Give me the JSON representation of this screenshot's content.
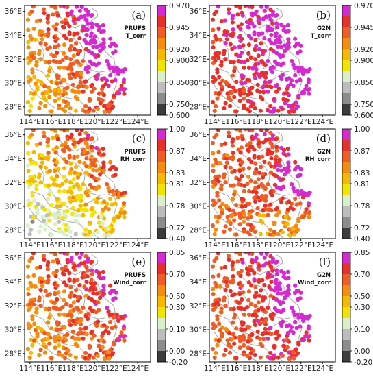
{
  "axes": {
    "x_ticks": [
      "114°E",
      "116°E",
      "118°E",
      "120°E",
      "122°E",
      "124°E"
    ],
    "y_ticks": [
      "28°E",
      "30°E",
      "32°E",
      "34°E",
      "36°E"
    ]
  },
  "colors": {
    "land_outline": "#a8a8a8",
    "scale": [
      "#3c3c3c",
      "#8c8c8c",
      "#bdbdbd",
      "#d9efc9",
      "#f2e400",
      "#f7b800",
      "#f58c10",
      "#ef5d24",
      "#e8302a",
      "#d42bd0"
    ]
  },
  "panels": [
    {
      "id": "a",
      "label": "(a)",
      "model": "PRUFS",
      "variable": "T_corr",
      "colorbar_ticks": [
        "0.970",
        "0.945",
        "0.920",
        "0.900",
        "0.850",
        "0.750",
        "0.600"
      ],
      "scheme": "T1"
    },
    {
      "id": "b",
      "label": "(b)",
      "model": "G2N",
      "variable": "T_corr",
      "colorbar_ticks": [
        "0.970",
        "0.945",
        "0.920",
        "0.900",
        "0.850",
        "0.750",
        "0.600"
      ],
      "scheme": "T2"
    },
    {
      "id": "c",
      "label": "(c)",
      "model": "PRUFS",
      "variable": "RH_corr",
      "colorbar_ticks": [
        "1.00",
        "0.87",
        "0.83",
        "0.81",
        "0.78",
        "0.72",
        "0.40"
      ],
      "scheme": "R1"
    },
    {
      "id": "d",
      "label": "(d)",
      "model": "G2N",
      "variable": "RH_corr",
      "colorbar_ticks": [
        "1.00",
        "0.87",
        "0.83",
        "0.81",
        "0.78",
        "0.72",
        "0.40"
      ],
      "scheme": "R2"
    },
    {
      "id": "e",
      "label": "(e)",
      "model": "PRUFS",
      "variable": "Wind_corr",
      "colorbar_ticks": [
        "0.85",
        "0.70",
        "0.50",
        "0.30",
        "0.10",
        "0.00",
        "-0.20"
      ],
      "scheme": "W1"
    },
    {
      "id": "f",
      "label": "(f)",
      "model": "G2N",
      "variable": "Wind_corr",
      "colorbar_ticks": [
        "0.85",
        "0.70",
        "0.50",
        "0.30",
        "0.10",
        "0.00",
        "-0.20"
      ],
      "scheme": "W2"
    }
  ]
}
